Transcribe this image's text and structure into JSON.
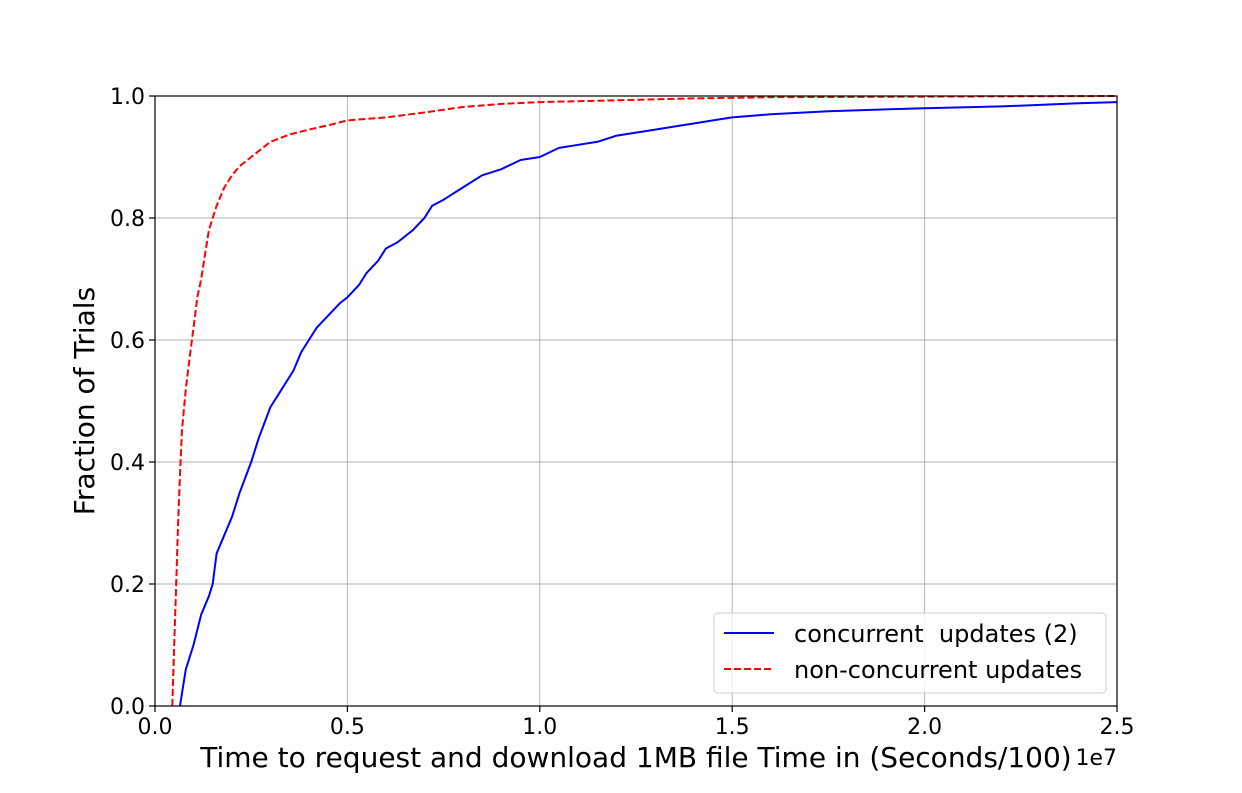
{
  "chart_data": {
    "type": "line",
    "title": "",
    "xlabel": "Time to request and download 1MB file Time in (Seconds/100)",
    "ylabel": "Fraction of Trials",
    "x_offset_label": "1e7",
    "xlim": [
      0.0,
      2.5
    ],
    "ylim": [
      0.0,
      1.0
    ],
    "x_ticks": [
      "0.0",
      "0.5",
      "1.0",
      "1.5",
      "2.0",
      "2.5"
    ],
    "y_ticks": [
      "0.0",
      "0.2",
      "0.4",
      "0.6",
      "0.8",
      "1.0"
    ],
    "grid": true,
    "legend_position": "lower-right",
    "series": [
      {
        "name": "concurrent  updates (2)",
        "color": "#0000ff",
        "style": "solid",
        "x": [
          0.065,
          0.07,
          0.08,
          0.1,
          0.12,
          0.14,
          0.15,
          0.16,
          0.18,
          0.2,
          0.22,
          0.25,
          0.27,
          0.3,
          0.33,
          0.36,
          0.38,
          0.4,
          0.42,
          0.45,
          0.48,
          0.5,
          0.53,
          0.55,
          0.58,
          0.6,
          0.63,
          0.67,
          0.7,
          0.72,
          0.75,
          0.8,
          0.85,
          0.9,
          0.95,
          1.0,
          1.05,
          1.1,
          1.15,
          1.2,
          1.25,
          1.3,
          1.35,
          1.4,
          1.45,
          1.5,
          1.6,
          1.75,
          1.9,
          2.0,
          2.2,
          2.4,
          2.5
        ],
        "y": [
          0.0,
          0.02,
          0.06,
          0.1,
          0.15,
          0.18,
          0.2,
          0.25,
          0.28,
          0.31,
          0.35,
          0.4,
          0.44,
          0.49,
          0.52,
          0.55,
          0.58,
          0.6,
          0.62,
          0.64,
          0.66,
          0.67,
          0.69,
          0.71,
          0.73,
          0.75,
          0.76,
          0.78,
          0.8,
          0.82,
          0.83,
          0.85,
          0.87,
          0.88,
          0.895,
          0.9,
          0.915,
          0.92,
          0.925,
          0.935,
          0.94,
          0.945,
          0.95,
          0.955,
          0.96,
          0.965,
          0.97,
          0.975,
          0.978,
          0.98,
          0.983,
          0.988,
          0.99
        ]
      },
      {
        "name": "non-concurrent updates",
        "color": "#ff0000",
        "style": "dashed",
        "x": [
          0.045,
          0.05,
          0.055,
          0.06,
          0.065,
          0.07,
          0.08,
          0.09,
          0.1,
          0.11,
          0.12,
          0.13,
          0.14,
          0.15,
          0.16,
          0.18,
          0.2,
          0.22,
          0.25,
          0.28,
          0.3,
          0.35,
          0.4,
          0.45,
          0.5,
          0.6,
          0.7,
          0.8,
          0.9,
          1.0,
          1.2,
          1.4,
          1.6,
          2.0,
          2.5
        ],
        "y": [
          0.0,
          0.1,
          0.2,
          0.3,
          0.38,
          0.45,
          0.52,
          0.57,
          0.62,
          0.67,
          0.7,
          0.74,
          0.78,
          0.8,
          0.82,
          0.85,
          0.87,
          0.885,
          0.9,
          0.915,
          0.925,
          0.937,
          0.945,
          0.952,
          0.96,
          0.965,
          0.973,
          0.982,
          0.987,
          0.99,
          0.993,
          0.996,
          0.998,
          0.999,
          1.0
        ]
      }
    ]
  }
}
